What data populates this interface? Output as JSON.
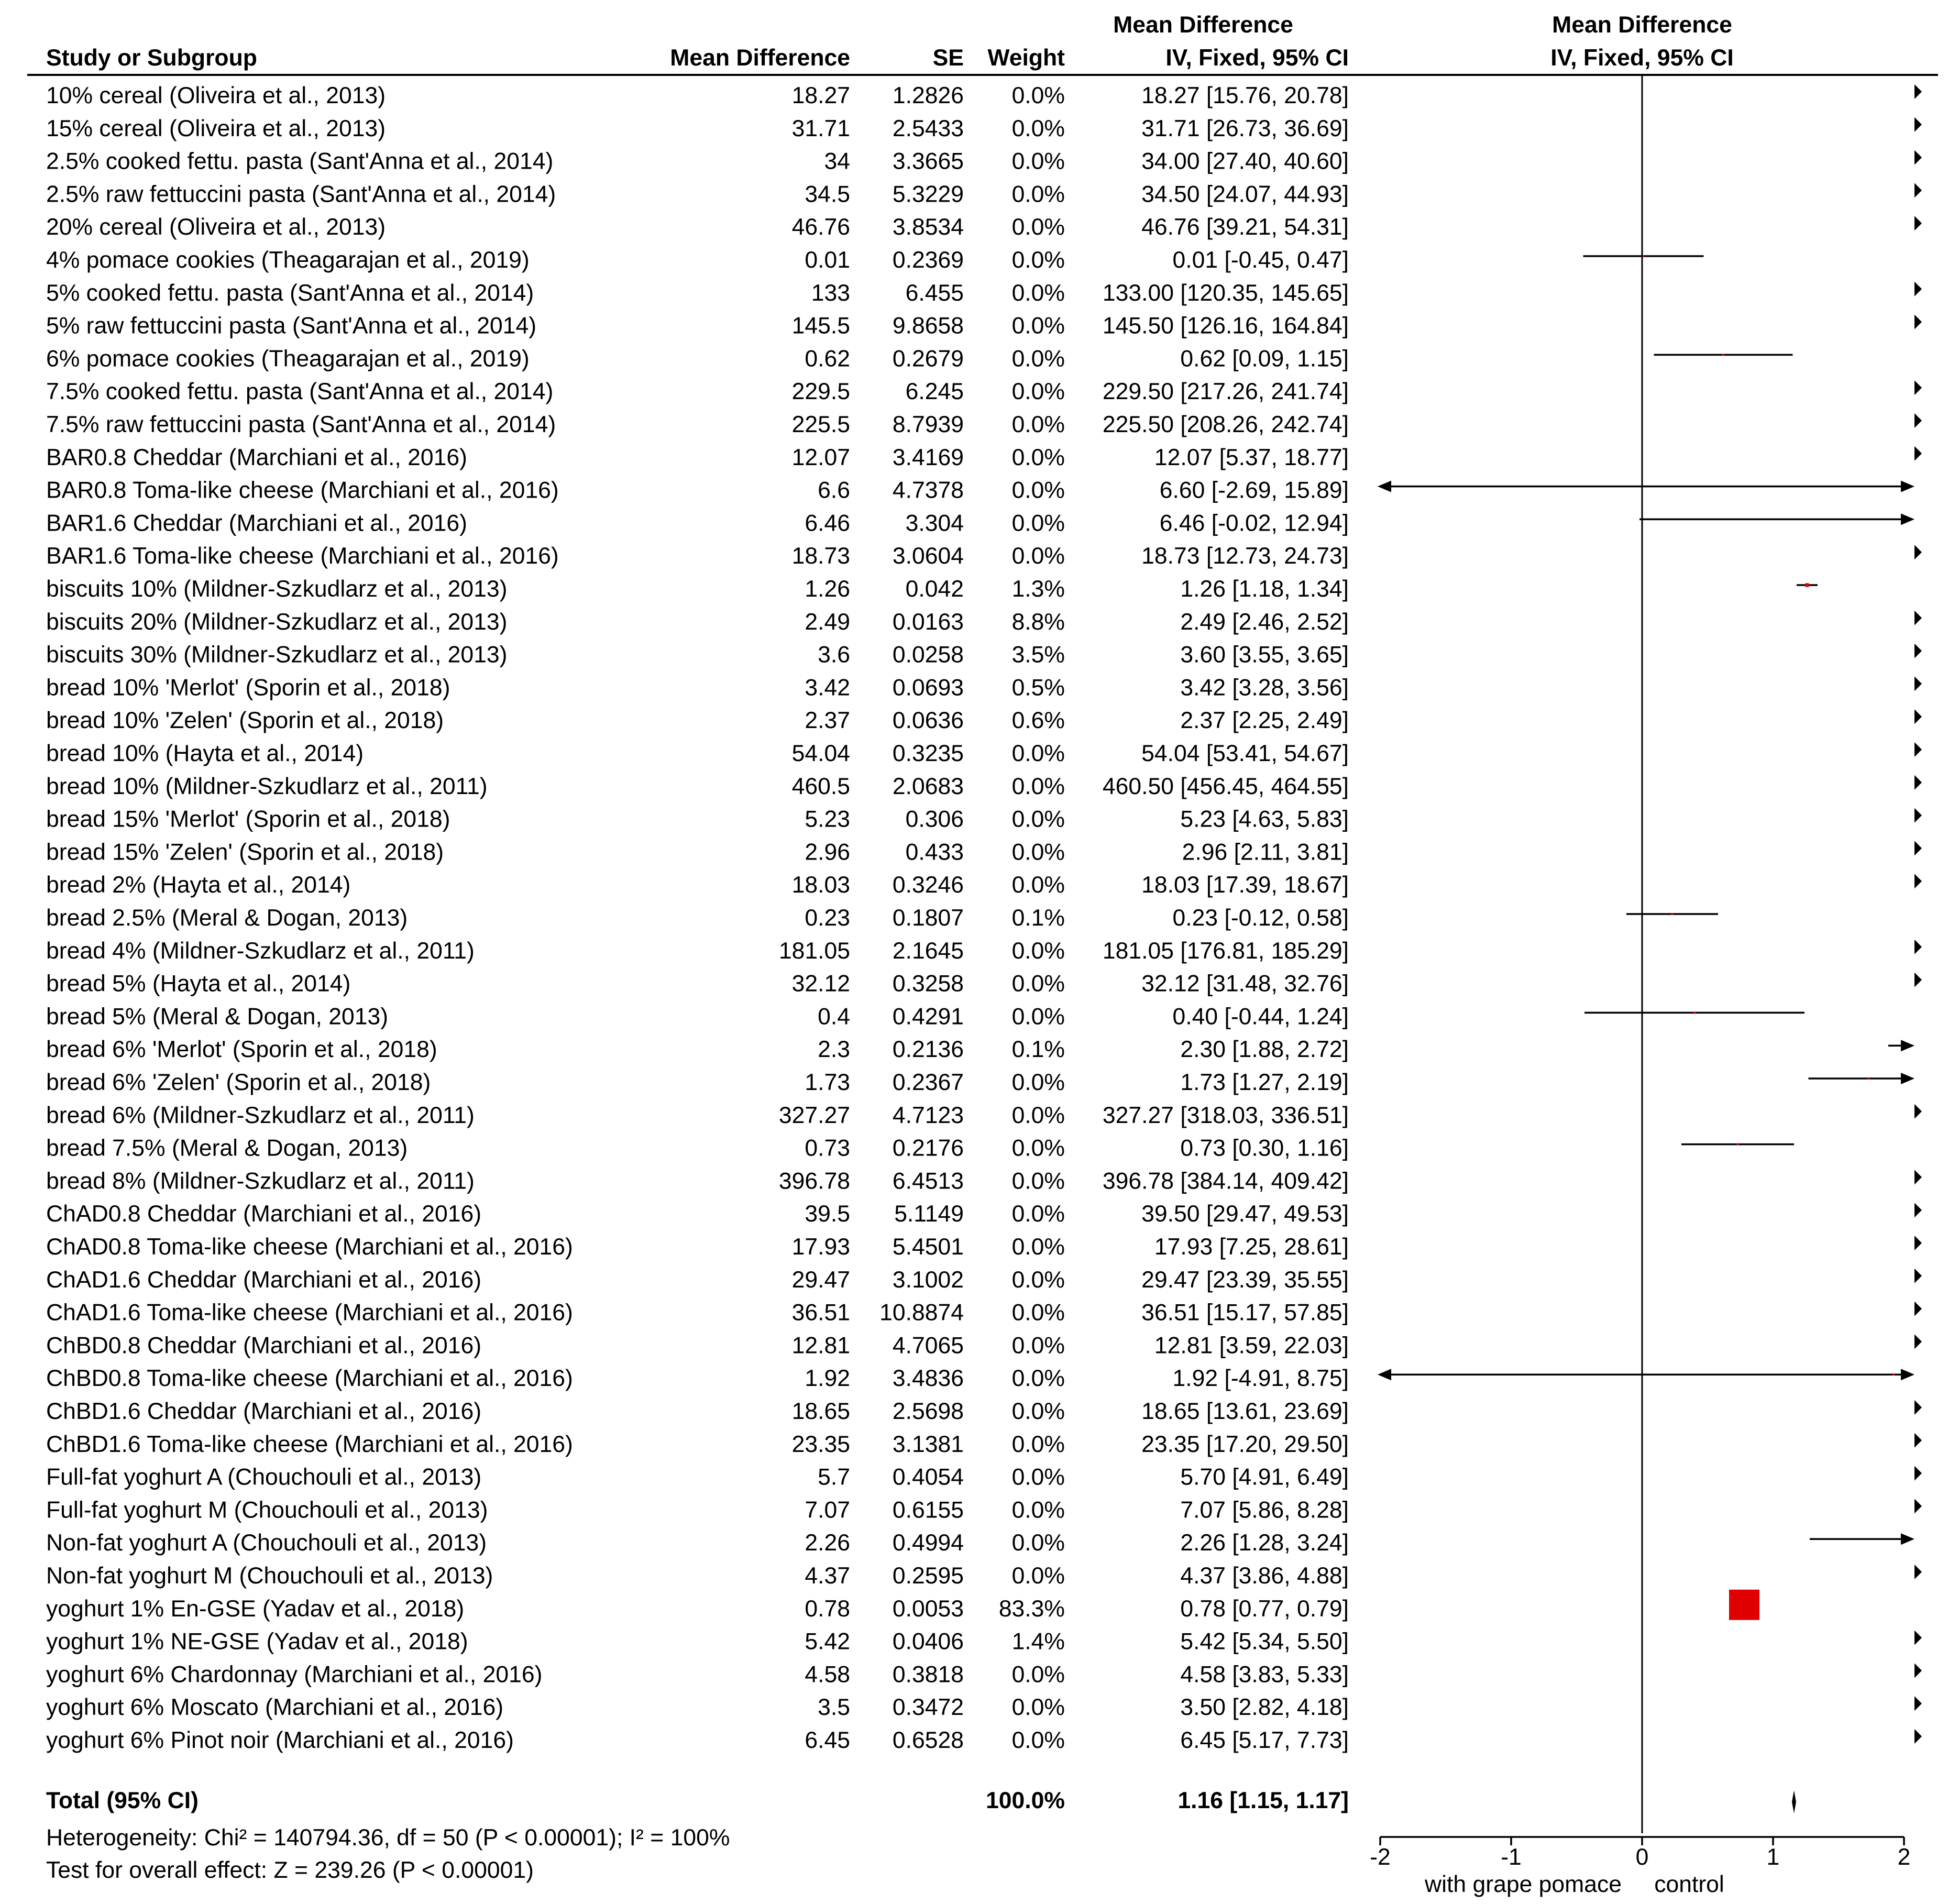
{
  "chart_data": {
    "type": "forest",
    "headers": {
      "study": "Study or Subgroup",
      "md": "Mean Difference",
      "se": "SE",
      "weight": "Weight",
      "ci_top": "Mean Difference",
      "ci_bottom": "IV, Fixed, 95% CI",
      "plot_top": "Mean Difference",
      "plot_bottom": "IV, Fixed, 95% CI"
    },
    "studies": [
      {
        "study": "10% cereal (Oliveira et al., 2013)",
        "md": "18.27",
        "se": "1.2826",
        "weight": "0.0%",
        "ci": "18.27 [15.76, 20.78]",
        "est": 18.27,
        "lo": 15.76,
        "hi": 20.78,
        "w": 0.0
      },
      {
        "study": "15% cereal (Oliveira et al., 2013)",
        "md": "31.71",
        "se": "2.5433",
        "weight": "0.0%",
        "ci": "31.71 [26.73, 36.69]",
        "est": 31.71,
        "lo": 26.73,
        "hi": 36.69,
        "w": 0.0
      },
      {
        "study": "2.5% cooked fettu. pasta (Sant'Anna et al., 2014)",
        "md": "34",
        "se": "3.3665",
        "weight": "0.0%",
        "ci": "34.00 [27.40, 40.60]",
        "est": 34.0,
        "lo": 27.4,
        "hi": 40.6,
        "w": 0.0
      },
      {
        "study": "2.5% raw fettuccini pasta (Sant'Anna et al., 2014)",
        "md": "34.5",
        "se": "5.3229",
        "weight": "0.0%",
        "ci": "34.50 [24.07, 44.93]",
        "est": 34.5,
        "lo": 24.07,
        "hi": 44.93,
        "w": 0.0
      },
      {
        "study": "20% cereal (Oliveira et al., 2013)",
        "md": "46.76",
        "se": "3.8534",
        "weight": "0.0%",
        "ci": "46.76 [39.21, 54.31]",
        "est": 46.76,
        "lo": 39.21,
        "hi": 54.31,
        "w": 0.0
      },
      {
        "study": "4% pomace cookies (Theagarajan et al., 2019)",
        "md": "0.01",
        "se": "0.2369",
        "weight": "0.0%",
        "ci": "0.01 [-0.45, 0.47]",
        "est": 0.01,
        "lo": -0.45,
        "hi": 0.47,
        "w": 0.0
      },
      {
        "study": "5% cooked fettu. pasta (Sant'Anna et al., 2014)",
        "md": "133",
        "se": "6.455",
        "weight": "0.0%",
        "ci": "133.00 [120.35, 145.65]",
        "est": 133.0,
        "lo": 120.35,
        "hi": 145.65,
        "w": 0.0
      },
      {
        "study": "5% raw fettuccini pasta (Sant'Anna et al., 2014)",
        "md": "145.5",
        "se": "9.8658",
        "weight": "0.0%",
        "ci": "145.50 [126.16, 164.84]",
        "est": 145.5,
        "lo": 126.16,
        "hi": 164.84,
        "w": 0.0
      },
      {
        "study": "6% pomace cookies (Theagarajan et al., 2019)",
        "md": "0.62",
        "se": "0.2679",
        "weight": "0.0%",
        "ci": "0.62 [0.09, 1.15]",
        "est": 0.62,
        "lo": 0.09,
        "hi": 1.15,
        "w": 0.0
      },
      {
        "study": "7.5% cooked fettu. pasta (Sant'Anna et al., 2014)",
        "md": "229.5",
        "se": "6.245",
        "weight": "0.0%",
        "ci": "229.50 [217.26, 241.74]",
        "est": 229.5,
        "lo": 217.26,
        "hi": 241.74,
        "w": 0.0
      },
      {
        "study": "7.5% raw fettuccini pasta (Sant'Anna et al., 2014)",
        "md": "225.5",
        "se": "8.7939",
        "weight": "0.0%",
        "ci": "225.50 [208.26, 242.74]",
        "est": 225.5,
        "lo": 208.26,
        "hi": 242.74,
        "w": 0.0
      },
      {
        "study": "BAR0.8 Cheddar (Marchiani et al., 2016)",
        "md": "12.07",
        "se": "3.4169",
        "weight": "0.0%",
        "ci": "12.07 [5.37, 18.77]",
        "est": 12.07,
        "lo": 5.37,
        "hi": 18.77,
        "w": 0.0
      },
      {
        "study": "BAR0.8 Toma-like cheese (Marchiani et al., 2016)",
        "md": "6.6",
        "se": "4.7378",
        "weight": "0.0%",
        "ci": "6.60 [-2.69, 15.89]",
        "est": 6.6,
        "lo": -2.69,
        "hi": 15.89,
        "w": 0.0
      },
      {
        "study": "BAR1.6 Cheddar (Marchiani et al., 2016)",
        "md": "6.46",
        "se": "3.304",
        "weight": "0.0%",
        "ci": "6.46 [-0.02, 12.94]",
        "est": 6.46,
        "lo": -0.02,
        "hi": 12.94,
        "w": 0.0
      },
      {
        "study": "BAR1.6 Toma-like cheese (Marchiani et al., 2016)",
        "md": "18.73",
        "se": "3.0604",
        "weight": "0.0%",
        "ci": "18.73 [12.73, 24.73]",
        "est": 18.73,
        "lo": 12.73,
        "hi": 24.73,
        "w": 0.0
      },
      {
        "study": "biscuits 10% (Mildner-Szkudlarz et al., 2013)",
        "md": "1.26",
        "se": "0.042",
        "weight": "1.3%",
        "ci": "1.26 [1.18, 1.34]",
        "est": 1.26,
        "lo": 1.18,
        "hi": 1.34,
        "w": 1.3
      },
      {
        "study": "biscuits 20% (Mildner-Szkudlarz et al., 2013)",
        "md": "2.49",
        "se": "0.0163",
        "weight": "8.8%",
        "ci": "2.49 [2.46, 2.52]",
        "est": 2.49,
        "lo": 2.46,
        "hi": 2.52,
        "w": 8.8
      },
      {
        "study": "biscuits 30% (Mildner-Szkudlarz et al., 2013)",
        "md": "3.6",
        "se": "0.0258",
        "weight": "3.5%",
        "ci": "3.60 [3.55, 3.65]",
        "est": 3.6,
        "lo": 3.55,
        "hi": 3.65,
        "w": 3.5
      },
      {
        "study": "bread 10% 'Merlot' (Sporin et al., 2018)",
        "md": "3.42",
        "se": "0.0693",
        "weight": "0.5%",
        "ci": "3.42 [3.28, 3.56]",
        "est": 3.42,
        "lo": 3.28,
        "hi": 3.56,
        "w": 0.5
      },
      {
        "study": "bread 10% 'Zelen' (Sporin et al., 2018)",
        "md": "2.37",
        "se": "0.0636",
        "weight": "0.6%",
        "ci": "2.37 [2.25, 2.49]",
        "est": 2.37,
        "lo": 2.25,
        "hi": 2.49,
        "w": 0.6
      },
      {
        "study": "bread 10% (Hayta et al., 2014)",
        "md": "54.04",
        "se": "0.3235",
        "weight": "0.0%",
        "ci": "54.04 [53.41, 54.67]",
        "est": 54.04,
        "lo": 53.41,
        "hi": 54.67,
        "w": 0.0
      },
      {
        "study": "bread 10% (Mildner-Szkudlarz et al., 2011)",
        "md": "460.5",
        "se": "2.0683",
        "weight": "0.0%",
        "ci": "460.50 [456.45, 464.55]",
        "est": 460.5,
        "lo": 456.45,
        "hi": 464.55,
        "w": 0.0
      },
      {
        "study": "bread 15% 'Merlot' (Sporin et al., 2018)",
        "md": "5.23",
        "se": "0.306",
        "weight": "0.0%",
        "ci": "5.23 [4.63, 5.83]",
        "est": 5.23,
        "lo": 4.63,
        "hi": 5.83,
        "w": 0.0
      },
      {
        "study": "bread 15% 'Zelen' (Sporin et al., 2018)",
        "md": "2.96",
        "se": "0.433",
        "weight": "0.0%",
        "ci": "2.96 [2.11, 3.81]",
        "est": 2.96,
        "lo": 2.11,
        "hi": 3.81,
        "w": 0.0
      },
      {
        "study": "bread 2% (Hayta et al., 2014)",
        "md": "18.03",
        "se": "0.3246",
        "weight": "0.0%",
        "ci": "18.03 [17.39, 18.67]",
        "est": 18.03,
        "lo": 17.39,
        "hi": 18.67,
        "w": 0.0
      },
      {
        "study": "bread 2.5% (Meral & Dogan, 2013)",
        "md": "0.23",
        "se": "0.1807",
        "weight": "0.1%",
        "ci": "0.23 [-0.12, 0.58]",
        "est": 0.23,
        "lo": -0.12,
        "hi": 0.58,
        "w": 0.1
      },
      {
        "study": "bread 4% (Mildner-Szkudlarz et al., 2011)",
        "md": "181.05",
        "se": "2.1645",
        "weight": "0.0%",
        "ci": "181.05 [176.81, 185.29]",
        "est": 181.05,
        "lo": 176.81,
        "hi": 185.29,
        "w": 0.0
      },
      {
        "study": "bread 5% (Hayta et al., 2014)",
        "md": "32.12",
        "se": "0.3258",
        "weight": "0.0%",
        "ci": "32.12 [31.48, 32.76]",
        "est": 32.12,
        "lo": 31.48,
        "hi": 32.76,
        "w": 0.0
      },
      {
        "study": "bread 5% (Meral & Dogan, 2013)",
        "md": "0.4",
        "se": "0.4291",
        "weight": "0.0%",
        "ci": "0.40 [-0.44, 1.24]",
        "est": 0.4,
        "lo": -0.44,
        "hi": 1.24,
        "w": 0.0
      },
      {
        "study": "bread 6% 'Merlot' (Sporin et al., 2018)",
        "md": "2.3",
        "se": "0.2136",
        "weight": "0.1%",
        "ci": "2.30 [1.88, 2.72]",
        "est": 2.3,
        "lo": 1.88,
        "hi": 2.72,
        "w": 0.1
      },
      {
        "study": "bread 6% 'Zelen' (Sporin et al., 2018)",
        "md": "1.73",
        "se": "0.2367",
        "weight": "0.0%",
        "ci": "1.73 [1.27, 2.19]",
        "est": 1.73,
        "lo": 1.27,
        "hi": 2.19,
        "w": 0.0
      },
      {
        "study": "bread 6% (Mildner-Szkudlarz et al., 2011)",
        "md": "327.27",
        "se": "4.7123",
        "weight": "0.0%",
        "ci": "327.27 [318.03, 336.51]",
        "est": 327.27,
        "lo": 318.03,
        "hi": 336.51,
        "w": 0.0
      },
      {
        "study": "bread 7.5% (Meral & Dogan, 2013)",
        "md": "0.73",
        "se": "0.2176",
        "weight": "0.0%",
        "ci": "0.73 [0.30, 1.16]",
        "est": 0.73,
        "lo": 0.3,
        "hi": 1.16,
        "w": 0.0
      },
      {
        "study": "bread 8% (Mildner-Szkudlarz et al., 2011)",
        "md": "396.78",
        "se": "6.4513",
        "weight": "0.0%",
        "ci": "396.78 [384.14, 409.42]",
        "est": 396.78,
        "lo": 384.14,
        "hi": 409.42,
        "w": 0.0
      },
      {
        "study": "ChAD0.8 Cheddar (Marchiani et al., 2016)",
        "md": "39.5",
        "se": "5.1149",
        "weight": "0.0%",
        "ci": "39.50 [29.47, 49.53]",
        "est": 39.5,
        "lo": 29.47,
        "hi": 49.53,
        "w": 0.0
      },
      {
        "study": "ChAD0.8 Toma-like cheese (Marchiani et al., 2016)",
        "md": "17.93",
        "se": "5.4501",
        "weight": "0.0%",
        "ci": "17.93 [7.25, 28.61]",
        "est": 17.93,
        "lo": 7.25,
        "hi": 28.61,
        "w": 0.0
      },
      {
        "study": "ChAD1.6 Cheddar (Marchiani et al., 2016)",
        "md": "29.47",
        "se": "3.1002",
        "weight": "0.0%",
        "ci": "29.47 [23.39, 35.55]",
        "est": 29.47,
        "lo": 23.39,
        "hi": 35.55,
        "w": 0.0
      },
      {
        "study": "ChAD1.6 Toma-like cheese (Marchiani et al., 2016)",
        "md": "36.51",
        "se": "10.8874",
        "weight": "0.0%",
        "ci": "36.51 [15.17, 57.85]",
        "est": 36.51,
        "lo": 15.17,
        "hi": 57.85,
        "w": 0.0
      },
      {
        "study": "ChBD0.8 Cheddar (Marchiani et al., 2016)",
        "md": "12.81",
        "se": "4.7065",
        "weight": "0.0%",
        "ci": "12.81 [3.59, 22.03]",
        "est": 12.81,
        "lo": 3.59,
        "hi": 22.03,
        "w": 0.0
      },
      {
        "study": "ChBD0.8 Toma-like cheese (Marchiani et al., 2016)",
        "md": "1.92",
        "se": "3.4836",
        "weight": "0.0%",
        "ci": "1.92 [-4.91, 8.75]",
        "est": 1.92,
        "lo": -4.91,
        "hi": 8.75,
        "w": 0.0
      },
      {
        "study": "ChBD1.6 Cheddar (Marchiani et al., 2016)",
        "md": "18.65",
        "se": "2.5698",
        "weight": "0.0%",
        "ci": "18.65 [13.61, 23.69]",
        "est": 18.65,
        "lo": 13.61,
        "hi": 23.69,
        "w": 0.0
      },
      {
        "study": "ChBD1.6 Toma-like cheese (Marchiani et al., 2016)",
        "md": "23.35",
        "se": "3.1381",
        "weight": "0.0%",
        "ci": "23.35 [17.20, 29.50]",
        "est": 23.35,
        "lo": 17.2,
        "hi": 29.5,
        "w": 0.0
      },
      {
        "study": "Full-fat yoghurt A (Chouchouli et al., 2013)",
        "md": "5.7",
        "se": "0.4054",
        "weight": "0.0%",
        "ci": "5.70 [4.91, 6.49]",
        "est": 5.7,
        "lo": 4.91,
        "hi": 6.49,
        "w": 0.0
      },
      {
        "study": "Full-fat yoghurt M (Chouchouli et al., 2013)",
        "md": "7.07",
        "se": "0.6155",
        "weight": "0.0%",
        "ci": "7.07 [5.86, 8.28]",
        "est": 7.07,
        "lo": 5.86,
        "hi": 8.28,
        "w": 0.0
      },
      {
        "study": "Non-fat yoghurt A (Chouchouli et al., 2013)",
        "md": "2.26",
        "se": "0.4994",
        "weight": "0.0%",
        "ci": "2.26 [1.28, 3.24]",
        "est": 2.26,
        "lo": 1.28,
        "hi": 3.24,
        "w": 0.0
      },
      {
        "study": "Non-fat yoghurt M (Chouchouli et al., 2013)",
        "md": "4.37",
        "se": "0.2595",
        "weight": "0.0%",
        "ci": "4.37 [3.86, 4.88]",
        "est": 4.37,
        "lo": 3.86,
        "hi": 4.88,
        "w": 0.0
      },
      {
        "study": "yoghurt 1% En-GSE (Yadav et al., 2018)",
        "md": "0.78",
        "se": "0.0053",
        "weight": "83.3%",
        "ci": "0.78 [0.77, 0.79]",
        "est": 0.78,
        "lo": 0.77,
        "hi": 0.79,
        "w": 83.3
      },
      {
        "study": "yoghurt 1% NE-GSE (Yadav et al., 2018)",
        "md": "5.42",
        "se": "0.0406",
        "weight": "1.4%",
        "ci": "5.42 [5.34, 5.50]",
        "est": 5.42,
        "lo": 5.34,
        "hi": 5.5,
        "w": 1.4
      },
      {
        "study": "yoghurt 6% Chardonnay (Marchiani et al., 2016)",
        "md": "4.58",
        "se": "0.3818",
        "weight": "0.0%",
        "ci": "4.58 [3.83, 5.33]",
        "est": 4.58,
        "lo": 3.83,
        "hi": 5.33,
        "w": 0.0
      },
      {
        "study": "yoghurt 6% Moscato (Marchiani et al., 2016)",
        "md": "3.5",
        "se": "0.3472",
        "weight": "0.0%",
        "ci": "3.50 [2.82, 4.18]",
        "est": 3.5,
        "lo": 2.82,
        "hi": 4.18,
        "w": 0.0
      },
      {
        "study": "yoghurt 6% Pinot noir (Marchiani et al., 2016)",
        "md": "6.45",
        "se": "0.6528",
        "weight": "0.0%",
        "ci": "6.45 [5.17, 7.73]",
        "est": 6.45,
        "lo": 5.17,
        "hi": 7.73,
        "w": 0.0
      }
    ],
    "total": {
      "label": "Total (95% CI)",
      "weight": "100.0%",
      "ci": "1.16 [1.15, 1.17]",
      "est": 1.16,
      "lo": 1.15,
      "hi": 1.17
    },
    "heterogeneity": "Heterogeneity: Chi² = 140794.36, df = 50 (P < 0.00001); I² = 100%",
    "overall_effect": "Test for overall effect: Z = 239.26 (P < 0.00001)",
    "xlim": [
      -2,
      2
    ],
    "xticks": [
      "-2",
      "-1",
      "0",
      "1",
      "2"
    ],
    "favours_left": "with grape pomace",
    "favours_right": "control",
    "colors": {
      "marker": "#e00000",
      "line": "#000000",
      "text": "#000000"
    }
  }
}
